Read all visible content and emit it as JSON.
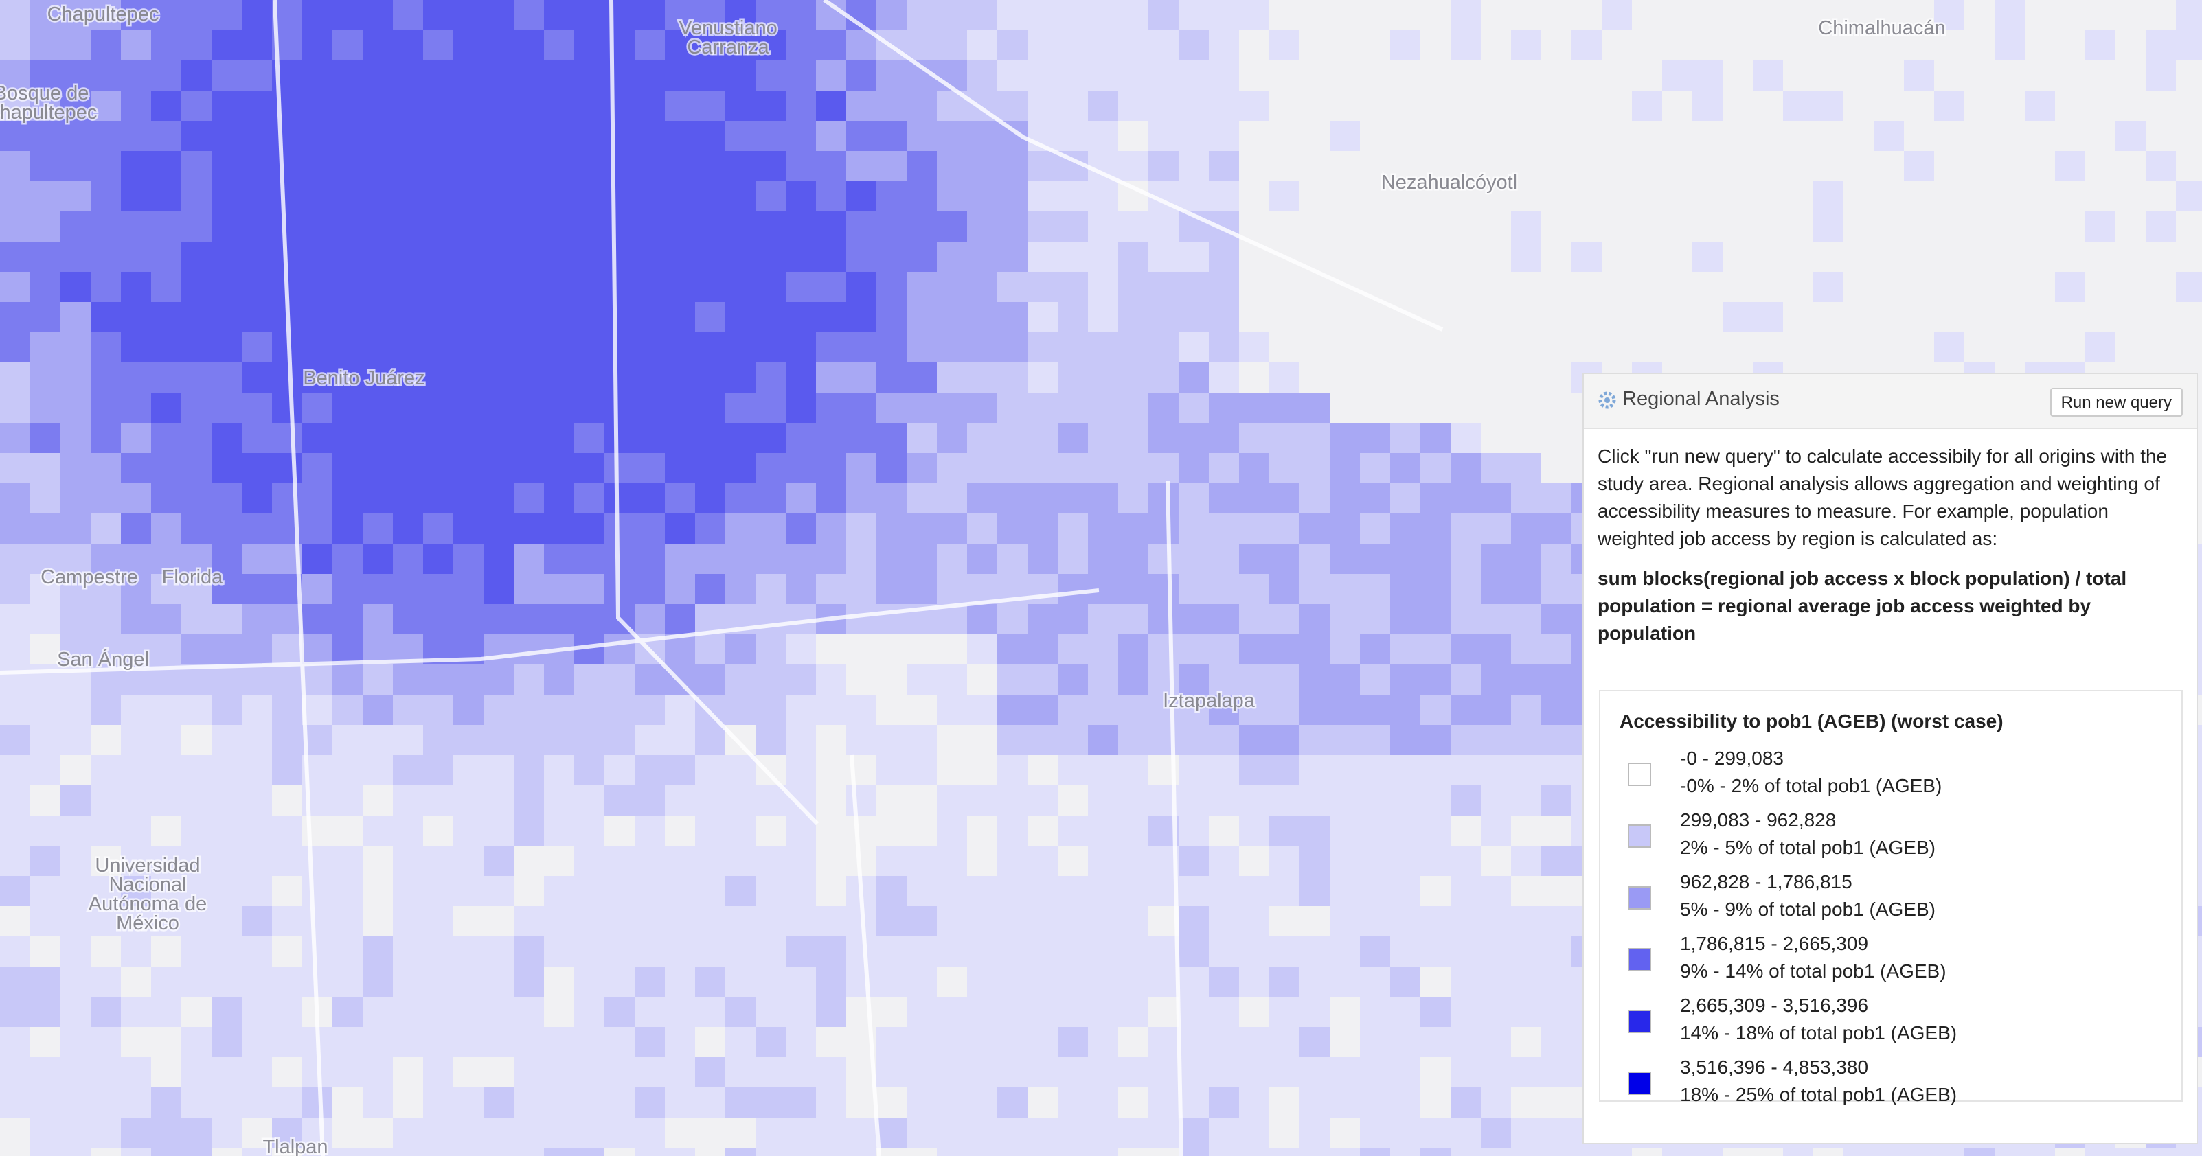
{
  "map": {
    "labels": [
      {
        "lines": [
          "Chapultepec"
        ],
        "x": 0,
        "y": 0
      },
      {
        "lines": [
          "Venustiano",
          "Carranza"
        ]
      },
      {
        "lines": [
          "Chimalhuacán"
        ]
      },
      {
        "lines": [
          "Bosque de",
          "Chapultepec"
        ]
      },
      {
        "lines": [
          "Benito Juárez"
        ]
      },
      {
        "lines": [
          "Nezahualcóyotl"
        ]
      },
      {
        "lines": [
          "Iztapalapa"
        ]
      },
      {
        "lines": [
          "Tlalpan"
        ]
      },
      {
        "lines": [
          "Universidad",
          "Nacional",
          "Autónoma de",
          "México"
        ]
      },
      {
        "lines": [
          "Florida"
        ]
      },
      {
        "lines": [
          "Campestre"
        ]
      },
      {
        "lines": [
          "San Ángel"
        ]
      }
    ]
  },
  "panel": {
    "title": "Regional Analysis",
    "button": "Run new query",
    "description": "Click \"run new query\" to calculate accessibily for all origins with the study area. Regional analysis allows aggregation and weighting of accessibility measures to measure. For example, population weighted job access by region is calculated as:",
    "formula": "sum blocks(regional job access x block population) / total population = regional average job access weighted by population",
    "legend": {
      "title": "Accessibility to pob1 (AGEB) (worst case)",
      "items": [
        {
          "range": "-0 - 299,083",
          "share": "-0% - 2% of total pob1 (AGEB)",
          "color": "#ffffff"
        },
        {
          "range": "299,083 - 962,828",
          "share": "2% - 5% of total pob1 (AGEB)",
          "color": "#c8c8f8"
        },
        {
          "range": "962,828 - 1,786,815",
          "share": "5% - 9% of total pob1 (AGEB)",
          "color": "#9a9af4"
        },
        {
          "range": "1,786,815 - 2,665,309",
          "share": "9% - 14% of total pob1 (AGEB)",
          "color": "#6262f0"
        },
        {
          "range": "2,665,309 - 3,516,396",
          "share": "14% - 18% of total pob1 (AGEB)",
          "color": "#2828ea"
        },
        {
          "range": "3,516,396 - 4,853,380",
          "share": "18% - 25% of total pob1 (AGEB)",
          "color": "#0000e8"
        }
      ]
    }
  }
}
